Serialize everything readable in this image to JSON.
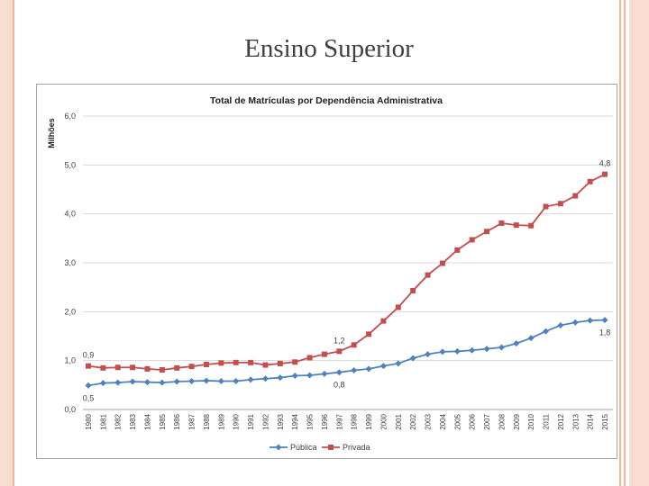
{
  "slide": {
    "title": "Ensino Superior"
  },
  "colors": {
    "publica": "#4f81bd",
    "privada": "#c0504d",
    "grid": "#d9d9d9",
    "text": "#404040"
  },
  "chart_data": {
    "type": "line",
    "title": "Total de Matrículas por Dependência Administrativa",
    "ylabel": "Milhões",
    "xlabel": "",
    "ylim": [
      0,
      6
    ],
    "yticks": [
      "0,0",
      "1,0",
      "2,0",
      "3,0",
      "4,0",
      "5,0",
      "6,0"
    ],
    "grid": true,
    "legend": "bottom",
    "categories": [
      "1980",
      "1981",
      "1982",
      "1983",
      "1984",
      "1985",
      "1986",
      "1987",
      "1988",
      "1989",
      "1990",
      "1991",
      "1992",
      "1993",
      "1994",
      "1995",
      "1996",
      "1997",
      "1998",
      "1999",
      "2000",
      "2001",
      "2002",
      "2003",
      "2004",
      "2005",
      "2006",
      "2007",
      "2008",
      "2009",
      "2010",
      "2011",
      "2012",
      "2013",
      "2014",
      "2015"
    ],
    "series": [
      {
        "name": "Pública",
        "marker": "diamond",
        "values": [
          0.49,
          0.54,
          0.55,
          0.57,
          0.56,
          0.55,
          0.57,
          0.58,
          0.59,
          0.58,
          0.58,
          0.61,
          0.63,
          0.65,
          0.69,
          0.7,
          0.73,
          0.76,
          0.8,
          0.83,
          0.89,
          0.94,
          1.05,
          1.13,
          1.18,
          1.19,
          1.21,
          1.24,
          1.27,
          1.35,
          1.46,
          1.6,
          1.72,
          1.78,
          1.82,
          1.83
        ]
      },
      {
        "name": "Privada",
        "marker": "square",
        "values": [
          0.89,
          0.85,
          0.86,
          0.86,
          0.83,
          0.81,
          0.85,
          0.88,
          0.92,
          0.95,
          0.96,
          0.96,
          0.91,
          0.94,
          0.97,
          1.06,
          1.13,
          1.19,
          1.32,
          1.54,
          1.81,
          2.09,
          2.43,
          2.75,
          2.99,
          3.26,
          3.47,
          3.64,
          3.81,
          3.77,
          3.76,
          4.15,
          4.21,
          4.37,
          4.66,
          4.81
        ]
      }
    ],
    "annotations": [
      {
        "series": "Privada",
        "category": "1980",
        "text": "0,9",
        "position": "above"
      },
      {
        "series": "Pública",
        "category": "1980",
        "text": "0,5",
        "position": "below"
      },
      {
        "series": "Privada",
        "category": "1997",
        "text": "1,2",
        "position": "above"
      },
      {
        "series": "Pública",
        "category": "1997",
        "text": "0,8",
        "position": "below"
      },
      {
        "series": "Privada",
        "category": "2015",
        "text": "4,8",
        "position": "above"
      },
      {
        "series": "Pública",
        "category": "2015",
        "text": "1,8",
        "position": "below"
      }
    ]
  }
}
